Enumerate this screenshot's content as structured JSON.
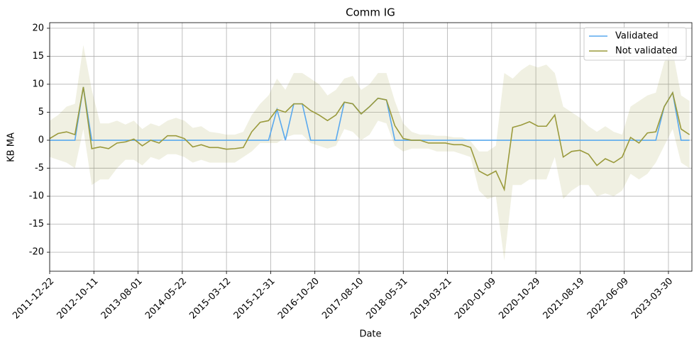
{
  "chart_data": {
    "type": "line",
    "title": "Comm IG",
    "xlabel": "Date",
    "ylabel": "KB MA",
    "x": [
      "2011-12-22",
      "2012-02-16",
      "2012-04-12",
      "2012-06-07",
      "2012-08-02",
      "2012-09-27",
      "2012-11-22",
      "2013-01-17",
      "2013-03-14",
      "2013-05-09",
      "2013-07-04",
      "2013-08-29",
      "2013-10-24",
      "2013-12-19",
      "2014-02-13",
      "2014-04-10",
      "2014-06-05",
      "2014-07-31",
      "2014-09-25",
      "2014-11-20",
      "2015-01-15",
      "2015-03-12",
      "2015-05-07",
      "2015-07-02",
      "2015-08-27",
      "2015-10-22",
      "2015-12-17",
      "2016-02-11",
      "2016-04-07",
      "2016-06-02",
      "2016-07-28",
      "2016-09-22",
      "2016-11-17",
      "2017-01-12",
      "2017-03-09",
      "2017-05-04",
      "2017-06-29",
      "2017-08-24",
      "2017-10-19",
      "2017-12-14",
      "2018-02-08",
      "2018-04-05",
      "2018-05-31",
      "2018-07-26",
      "2018-09-20",
      "2018-11-15",
      "2019-01-10",
      "2019-03-07",
      "2019-05-02",
      "2019-06-27",
      "2019-08-22",
      "2019-10-17",
      "2019-12-12",
      "2020-02-06",
      "2020-04-02",
      "2020-05-28",
      "2020-07-23",
      "2020-09-17",
      "2020-11-12",
      "2021-01-07",
      "2021-03-04",
      "2021-04-29",
      "2021-06-24",
      "2021-08-19",
      "2021-10-14",
      "2021-12-09",
      "2022-02-03",
      "2022-03-31",
      "2022-05-26",
      "2022-07-21",
      "2022-09-15",
      "2022-11-10",
      "2023-01-05",
      "2023-03-02",
      "2023-04-27",
      "2023-06-22",
      "2023-08-17"
    ],
    "series": [
      {
        "name": "Validated",
        "color": "#5aa9ee",
        "values": [
          0,
          0,
          0,
          0,
          9.5,
          0,
          0,
          0,
          0,
          0,
          0,
          0,
          0,
          0,
          0,
          0,
          0,
          0,
          0,
          0,
          0,
          0,
          0,
          0,
          0,
          0,
          0,
          5.5,
          0,
          6.5,
          6.5,
          0,
          0,
          0,
          0,
          6.8,
          6.5,
          4.7,
          6,
          7.5,
          7.2,
          0,
          0,
          0,
          0,
          0,
          0,
          0,
          0,
          0,
          0,
          0,
          0,
          0,
          0,
          0,
          0,
          0,
          0,
          0,
          0,
          0,
          0,
          0,
          0,
          0,
          0,
          0,
          0,
          0,
          0,
          0,
          0,
          6,
          8.5,
          0,
          0
        ]
      },
      {
        "name": "Not validated",
        "color": "#9a9a3c",
        "band_color": "#9a9a3c",
        "values": [
          0.3,
          1.2,
          1.5,
          1.0,
          9.5,
          -1.5,
          -1.2,
          -1.5,
          -0.5,
          -0.3,
          0.2,
          -1,
          0,
          -0.5,
          0.8,
          0.8,
          0.3,
          -1.2,
          -0.8,
          -1.3,
          -1.3,
          -1.6,
          -1.5,
          -1.3,
          1.5,
          3.2,
          3.5,
          5.5,
          5,
          6.5,
          6.5,
          5.3,
          4.5,
          3.5,
          4.5,
          6.8,
          6.5,
          4.7,
          6,
          7.5,
          7.2,
          2.6,
          0.3,
          0,
          0,
          -0.5,
          -0.5,
          -0.5,
          -0.8,
          -0.8,
          -1.3,
          -5.5,
          -6.3,
          -5.5,
          -8.8,
          2.3,
          2.7,
          3.3,
          2.5,
          2.5,
          4.5,
          -3,
          -2,
          -1.8,
          -2.5,
          -4.5,
          -3.3,
          -4,
          -3,
          0.5,
          -0.5,
          1.3,
          1.5,
          6,
          8.5,
          2,
          1
        ],
        "upper": [
          3.5,
          4.5,
          6,
          6.5,
          17,
          9,
          3,
          3,
          3.5,
          2.8,
          3.5,
          2,
          3,
          2.5,
          3.5,
          4,
          3.5,
          2.2,
          2.5,
          1.5,
          1.3,
          1,
          1,
          1.5,
          4.5,
          6.5,
          8,
          11,
          9,
          12,
          12,
          11,
          10,
          8,
          9,
          11,
          11.5,
          9,
          10,
          12,
          12,
          7,
          3,
          1.5,
          1,
          1,
          0.8,
          0.8,
          0.5,
          0.5,
          -0.2,
          -2,
          -2,
          -1,
          12,
          11,
          12.5,
          13.5,
          13,
          13.5,
          12,
          6,
          5,
          4,
          2.5,
          1.5,
          2.5,
          1.5,
          1,
          6,
          7,
          8,
          8.5,
          14,
          16,
          8,
          7
        ],
        "lower": [
          -3,
          -3.5,
          -4,
          -5,
          2,
          -8,
          -7,
          -7,
          -5,
          -3.5,
          -3.5,
          -4.5,
          -3,
          -3.5,
          -2.5,
          -2.5,
          -3,
          -4,
          -3.5,
          -4,
          -4,
          -4,
          -4,
          -3,
          -2,
          -0.5,
          -0.5,
          -0.5,
          0.5,
          1,
          1,
          -0.5,
          -1,
          -1.5,
          -1,
          2,
          1.5,
          0,
          1,
          3.5,
          3,
          -1,
          -2,
          -1.5,
          -1.5,
          -1.5,
          -2,
          -2,
          -2,
          -2.5,
          -3,
          -9,
          -10.5,
          -10,
          -21.5,
          -8,
          -8,
          -7,
          -7,
          -7,
          -3,
          -10.5,
          -9,
          -8,
          -8,
          -10,
          -9.5,
          -10,
          -9,
          -6,
          -7,
          -6,
          -4,
          -1,
          2,
          -4,
          -5
        ]
      }
    ],
    "xlim": [
      "2011-12-22",
      "2023-09-02"
    ],
    "xticks": [
      "2011-12-22",
      "2012-10-11",
      "2013-08-01",
      "2014-05-22",
      "2015-03-12",
      "2015-12-31",
      "2016-10-20",
      "2017-08-10",
      "2018-05-31",
      "2019-03-21",
      "2020-01-09",
      "2020-10-29",
      "2021-08-19",
      "2022-06-09",
      "2023-03-30"
    ],
    "ylim": [
      -23.4,
      21
    ],
    "yticks": [
      -20,
      -15,
      -10,
      -5,
      0,
      5,
      10,
      15,
      20
    ],
    "grid": true,
    "legend": "upper right"
  }
}
